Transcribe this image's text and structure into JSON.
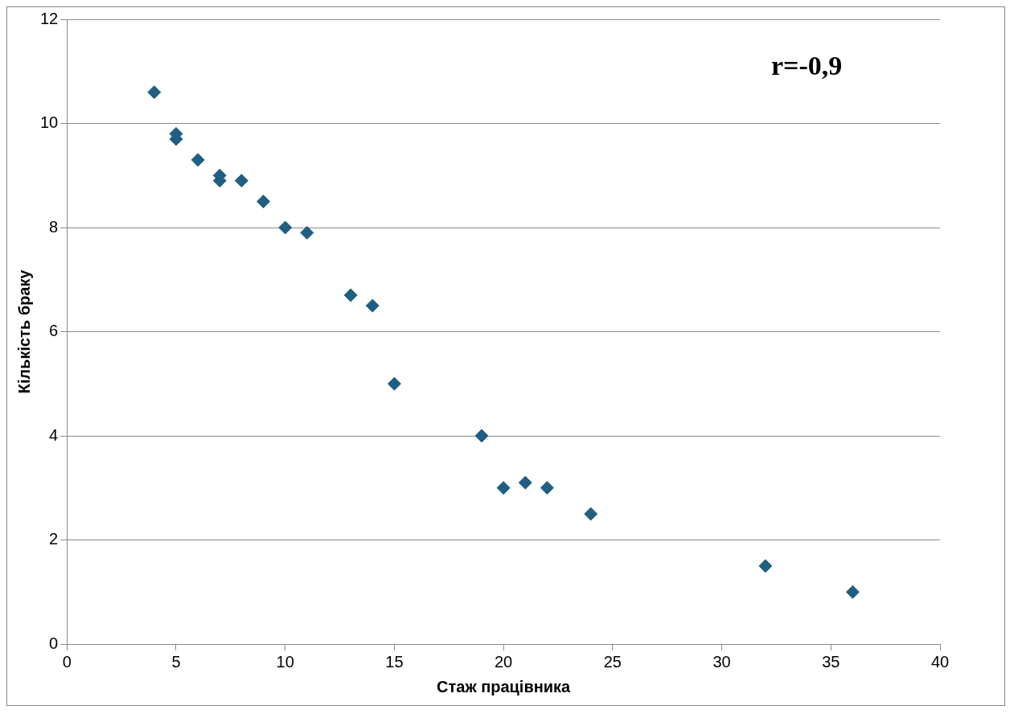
{
  "chart_data": {
    "type": "scatter",
    "xlabel": "Стаж працівника",
    "ylabel": "Кількість браку",
    "annotations": [
      "r=-0,9"
    ],
    "x": [
      4,
      5,
      5,
      6,
      7,
      7,
      8,
      9,
      10,
      11,
      13,
      14,
      15,
      19,
      20,
      21,
      22,
      24,
      32,
      36
    ],
    "series": [
      {
        "color": "#1f5f82",
        "values": [
          10.6,
          9.8,
          9.7,
          9.3,
          9.0,
          8.9,
          8.9,
          8.5,
          8.0,
          7.9,
          6.7,
          6.5,
          5.0,
          4.0,
          3.0,
          3.1,
          3.0,
          2.5,
          1.5,
          1.0
        ]
      }
    ],
    "xlim": [
      0,
      40
    ],
    "xticks": [
      0,
      5,
      10,
      15,
      20,
      25,
      30,
      35,
      40
    ],
    "ylim": [
      0,
      12
    ],
    "yticks": [
      0,
      2,
      4,
      6,
      8,
      10,
      12
    ],
    "grid": "y",
    "legend": false,
    "marker": "diamond"
  }
}
